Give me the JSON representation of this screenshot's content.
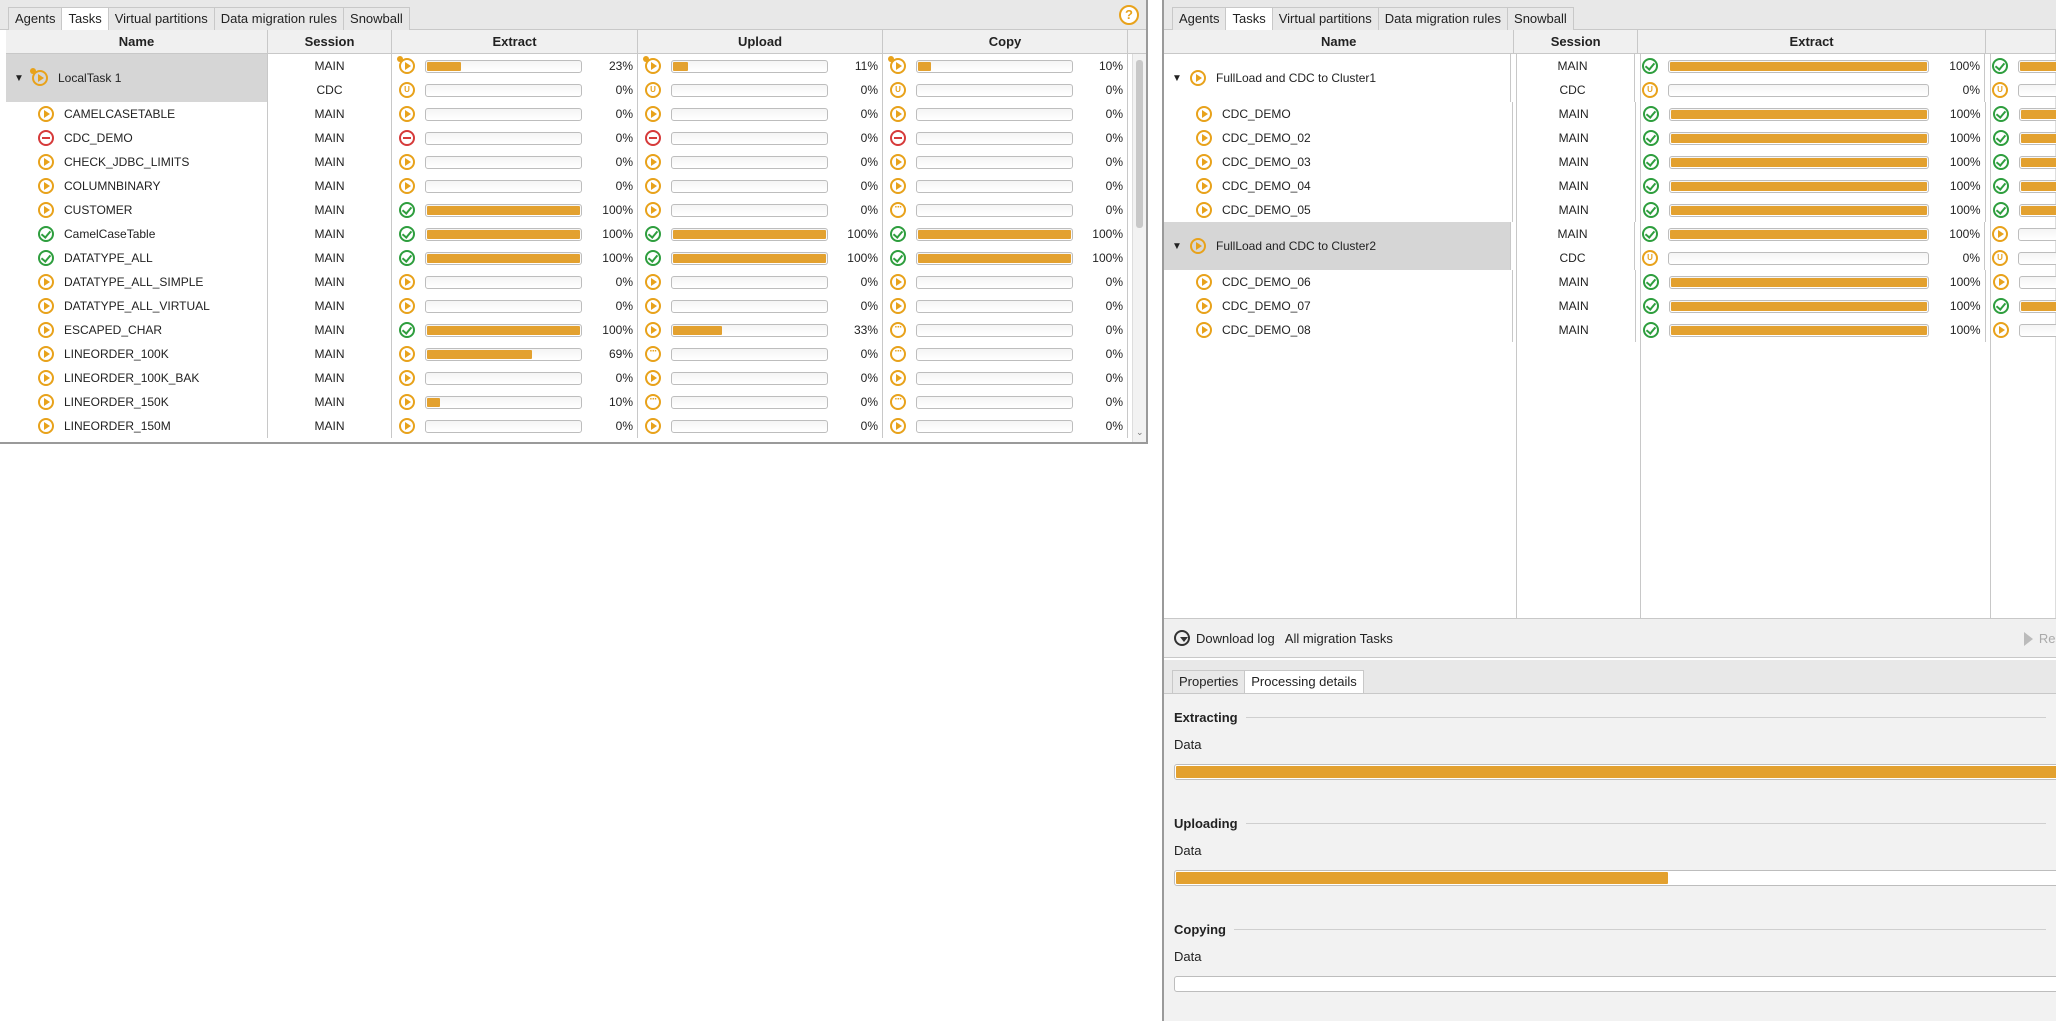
{
  "colors": {
    "accent": "#e3a12f",
    "ok": "#2e9e3e",
    "error": "#d63a3a"
  },
  "left": {
    "tabs": [
      "Agents",
      "Tasks",
      "Virtual partitions",
      "Data migration rules",
      "Snowball"
    ],
    "active_tab": "Tasks",
    "help_icon": "?",
    "columns": {
      "name": "Name",
      "session": "Session",
      "extract": "Extract",
      "upload": "Upload",
      "copy": "Copy"
    },
    "group": {
      "name": "LocalTask 1",
      "sessions": [
        {
          "session": "MAIN",
          "extract": {
            "icon": "run",
            "pct": 23
          },
          "upload": {
            "icon": "run",
            "pct": 11
          },
          "copy": {
            "icon": "run",
            "pct": 10
          }
        },
        {
          "session": "CDC",
          "extract": {
            "icon": "u",
            "pct": 0
          },
          "upload": {
            "icon": "u",
            "pct": 0
          },
          "copy": {
            "icon": "u",
            "pct": 0
          }
        }
      ]
    },
    "rows": [
      {
        "name": "CAMELCASETABLE",
        "icon": "play",
        "session": "MAIN",
        "extract": {
          "icon": "play",
          "pct": 0
        },
        "upload": {
          "icon": "play",
          "pct": 0
        },
        "copy": {
          "icon": "play",
          "pct": 0
        }
      },
      {
        "name": "CDC_DEMO",
        "icon": "err",
        "session": "MAIN",
        "extract": {
          "icon": "err",
          "pct": 0
        },
        "upload": {
          "icon": "err",
          "pct": 0
        },
        "copy": {
          "icon": "err",
          "pct": 0
        }
      },
      {
        "name": "CHECK_JDBC_LIMITS",
        "icon": "play",
        "session": "MAIN",
        "extract": {
          "icon": "play",
          "pct": 0
        },
        "upload": {
          "icon": "play",
          "pct": 0
        },
        "copy": {
          "icon": "play",
          "pct": 0
        }
      },
      {
        "name": "COLUMNBINARY",
        "icon": "play",
        "session": "MAIN",
        "extract": {
          "icon": "play",
          "pct": 0
        },
        "upload": {
          "icon": "play",
          "pct": 0
        },
        "copy": {
          "icon": "play",
          "pct": 0
        }
      },
      {
        "name": "CUSTOMER",
        "icon": "play",
        "session": "MAIN",
        "extract": {
          "icon": "ok",
          "pct": 100
        },
        "upload": {
          "icon": "play",
          "pct": 0
        },
        "copy": {
          "icon": "wait",
          "pct": 0
        }
      },
      {
        "name": "CamelCaseTable",
        "icon": "ok",
        "session": "MAIN",
        "extract": {
          "icon": "ok",
          "pct": 100
        },
        "upload": {
          "icon": "ok",
          "pct": 100
        },
        "copy": {
          "icon": "ok",
          "pct": 100
        }
      },
      {
        "name": "DATATYPE_ALL",
        "icon": "ok",
        "session": "MAIN",
        "extract": {
          "icon": "ok",
          "pct": 100
        },
        "upload": {
          "icon": "ok",
          "pct": 100
        },
        "copy": {
          "icon": "ok",
          "pct": 100
        }
      },
      {
        "name": "DATATYPE_ALL_SIMPLE",
        "icon": "play",
        "session": "MAIN",
        "extract": {
          "icon": "play",
          "pct": 0
        },
        "upload": {
          "icon": "play",
          "pct": 0
        },
        "copy": {
          "icon": "play",
          "pct": 0
        }
      },
      {
        "name": "DATATYPE_ALL_VIRTUAL",
        "icon": "play",
        "session": "MAIN",
        "extract": {
          "icon": "play",
          "pct": 0
        },
        "upload": {
          "icon": "play",
          "pct": 0
        },
        "copy": {
          "icon": "play",
          "pct": 0
        }
      },
      {
        "name": "ESCAPED_CHAR",
        "icon": "play",
        "session": "MAIN",
        "extract": {
          "icon": "ok",
          "pct": 100
        },
        "upload": {
          "icon": "play",
          "pct": 33
        },
        "copy": {
          "icon": "wait",
          "pct": 0
        }
      },
      {
        "name": "LINEORDER_100K",
        "icon": "play",
        "session": "MAIN",
        "extract": {
          "icon": "play",
          "pct": 69
        },
        "upload": {
          "icon": "wait",
          "pct": 0
        },
        "copy": {
          "icon": "wait",
          "pct": 0
        }
      },
      {
        "name": "LINEORDER_100K_BAK",
        "icon": "play",
        "session": "MAIN",
        "extract": {
          "icon": "play",
          "pct": 0
        },
        "upload": {
          "icon": "play",
          "pct": 0
        },
        "copy": {
          "icon": "play",
          "pct": 0
        }
      },
      {
        "name": "LINEORDER_150K",
        "icon": "play",
        "session": "MAIN",
        "extract": {
          "icon": "play",
          "pct": 10
        },
        "upload": {
          "icon": "wait",
          "pct": 0
        },
        "copy": {
          "icon": "wait",
          "pct": 0
        }
      },
      {
        "name": "LINEORDER_150M",
        "icon": "play",
        "session": "MAIN",
        "extract": {
          "icon": "play",
          "pct": 0
        },
        "upload": {
          "icon": "play",
          "pct": 0
        },
        "copy": {
          "icon": "play",
          "pct": 0
        }
      }
    ]
  },
  "right": {
    "tabs": [
      "Agents",
      "Tasks",
      "Virtual partitions",
      "Data migration rules",
      "Snowball"
    ],
    "active_tab": "Tasks",
    "columns": {
      "name": "Name",
      "session": "Session",
      "extract": "Extract"
    },
    "groups": [
      {
        "name": "FullLoad and CDC to Cluster1",
        "selected": false,
        "sessions": [
          {
            "session": "MAIN",
            "extract": {
              "icon": "ok",
              "pct": 100
            },
            "next_icon": "ok"
          },
          {
            "session": "CDC",
            "extract": {
              "icon": "u",
              "pct": 0
            },
            "next_icon": "u"
          }
        ],
        "children": [
          {
            "name": "CDC_DEMO",
            "session": "MAIN",
            "extract": {
              "icon": "ok",
              "pct": 100
            },
            "next_icon": "ok"
          },
          {
            "name": "CDC_DEMO_02",
            "session": "MAIN",
            "extract": {
              "icon": "ok",
              "pct": 100
            },
            "next_icon": "ok"
          },
          {
            "name": "CDC_DEMO_03",
            "session": "MAIN",
            "extract": {
              "icon": "ok",
              "pct": 100
            },
            "next_icon": "ok"
          },
          {
            "name": "CDC_DEMO_04",
            "session": "MAIN",
            "extract": {
              "icon": "ok",
              "pct": 100
            },
            "next_icon": "ok"
          },
          {
            "name": "CDC_DEMO_05",
            "session": "MAIN",
            "extract": {
              "icon": "ok",
              "pct": 100
            },
            "next_icon": "ok"
          }
        ]
      },
      {
        "name": "FullLoad and CDC to Cluster2",
        "selected": true,
        "sessions": [
          {
            "session": "MAIN",
            "extract": {
              "icon": "ok",
              "pct": 100
            },
            "next_icon": "play"
          },
          {
            "session": "CDC",
            "extract": {
              "icon": "u",
              "pct": 0
            },
            "next_icon": "u"
          }
        ],
        "children": [
          {
            "name": "CDC_DEMO_06",
            "session": "MAIN",
            "extract": {
              "icon": "ok",
              "pct": 100
            },
            "next_icon": "play"
          },
          {
            "name": "CDC_DEMO_07",
            "session": "MAIN",
            "extract": {
              "icon": "ok",
              "pct": 100
            },
            "next_icon": "ok"
          },
          {
            "name": "CDC_DEMO_08",
            "session": "MAIN",
            "extract": {
              "icon": "ok",
              "pct": 100
            },
            "next_icon": "play"
          }
        ]
      }
    ],
    "toolbar": {
      "download_label": "Download log",
      "scope_label": "All migration Tasks",
      "res_label": "Res"
    },
    "details_tabs": [
      "Properties",
      "Processing details"
    ],
    "details_active_tab": "Processing details",
    "sections": [
      {
        "title": "Extracting",
        "data_label": "Data",
        "pct": 100
      },
      {
        "title": "Uploading",
        "data_label": "Data",
        "pct": 55
      },
      {
        "title": "Copying",
        "data_label": "Data",
        "pct": 0
      }
    ]
  }
}
